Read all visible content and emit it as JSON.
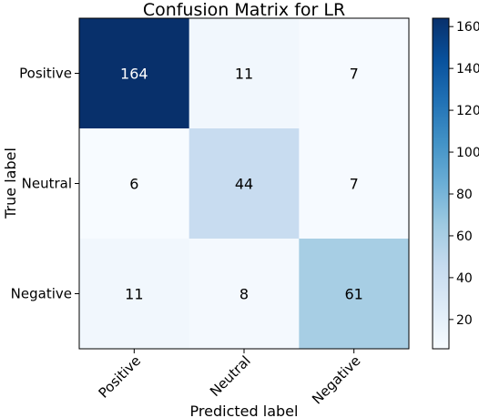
{
  "chart_data": {
    "type": "heatmap",
    "title": "Confusion Matrix for LR",
    "xlabel": "Predicted label",
    "ylabel": "True label",
    "x_categories": [
      "Positive",
      "Neutral",
      "Negative"
    ],
    "y_categories": [
      "Positive",
      "Neutral",
      "Negative"
    ],
    "values": [
      [
        164,
        11,
        7
      ],
      [
        6,
        44,
        7
      ],
      [
        11,
        8,
        61
      ]
    ],
    "colorscale": "Blues",
    "color_range": [
      6,
      164
    ],
    "colorbar_ticks": [
      20,
      40,
      60,
      80,
      100,
      120,
      140,
      160
    ],
    "grid": false
  }
}
